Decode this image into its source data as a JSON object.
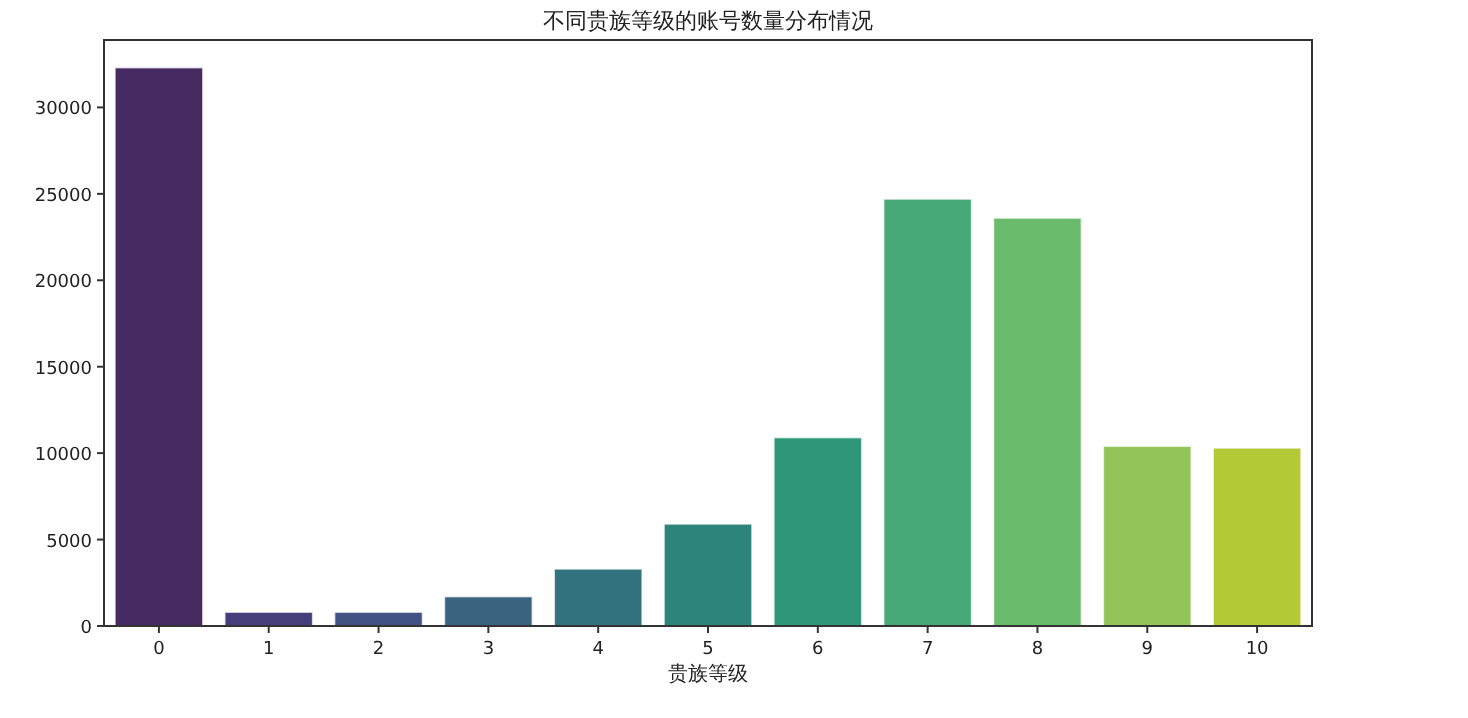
{
  "chart_data": {
    "type": "bar",
    "title": "不同贵族等级的账号数量分布情况",
    "xlabel": "贵族等级",
    "categories": [
      "0",
      "1",
      "2",
      "3",
      "4",
      "5",
      "6",
      "7",
      "8",
      "9",
      "10"
    ],
    "values": [
      32300,
      800,
      800,
      1700,
      3300,
      5900,
      10900,
      24700,
      23600,
      10400,
      10300
    ],
    "colors": [
      "#482a63",
      "#463d7b",
      "#3f5282",
      "#3a6380",
      "#33727f",
      "#2d847b",
      "#2e977a",
      "#48a978",
      "#6abb6c",
      "#91c55a",
      "#b5c937"
    ],
    "ylim": [
      0,
      33900
    ],
    "yticks": [
      0,
      5000,
      10000,
      15000,
      20000,
      25000,
      30000
    ],
    "grid": false
  }
}
